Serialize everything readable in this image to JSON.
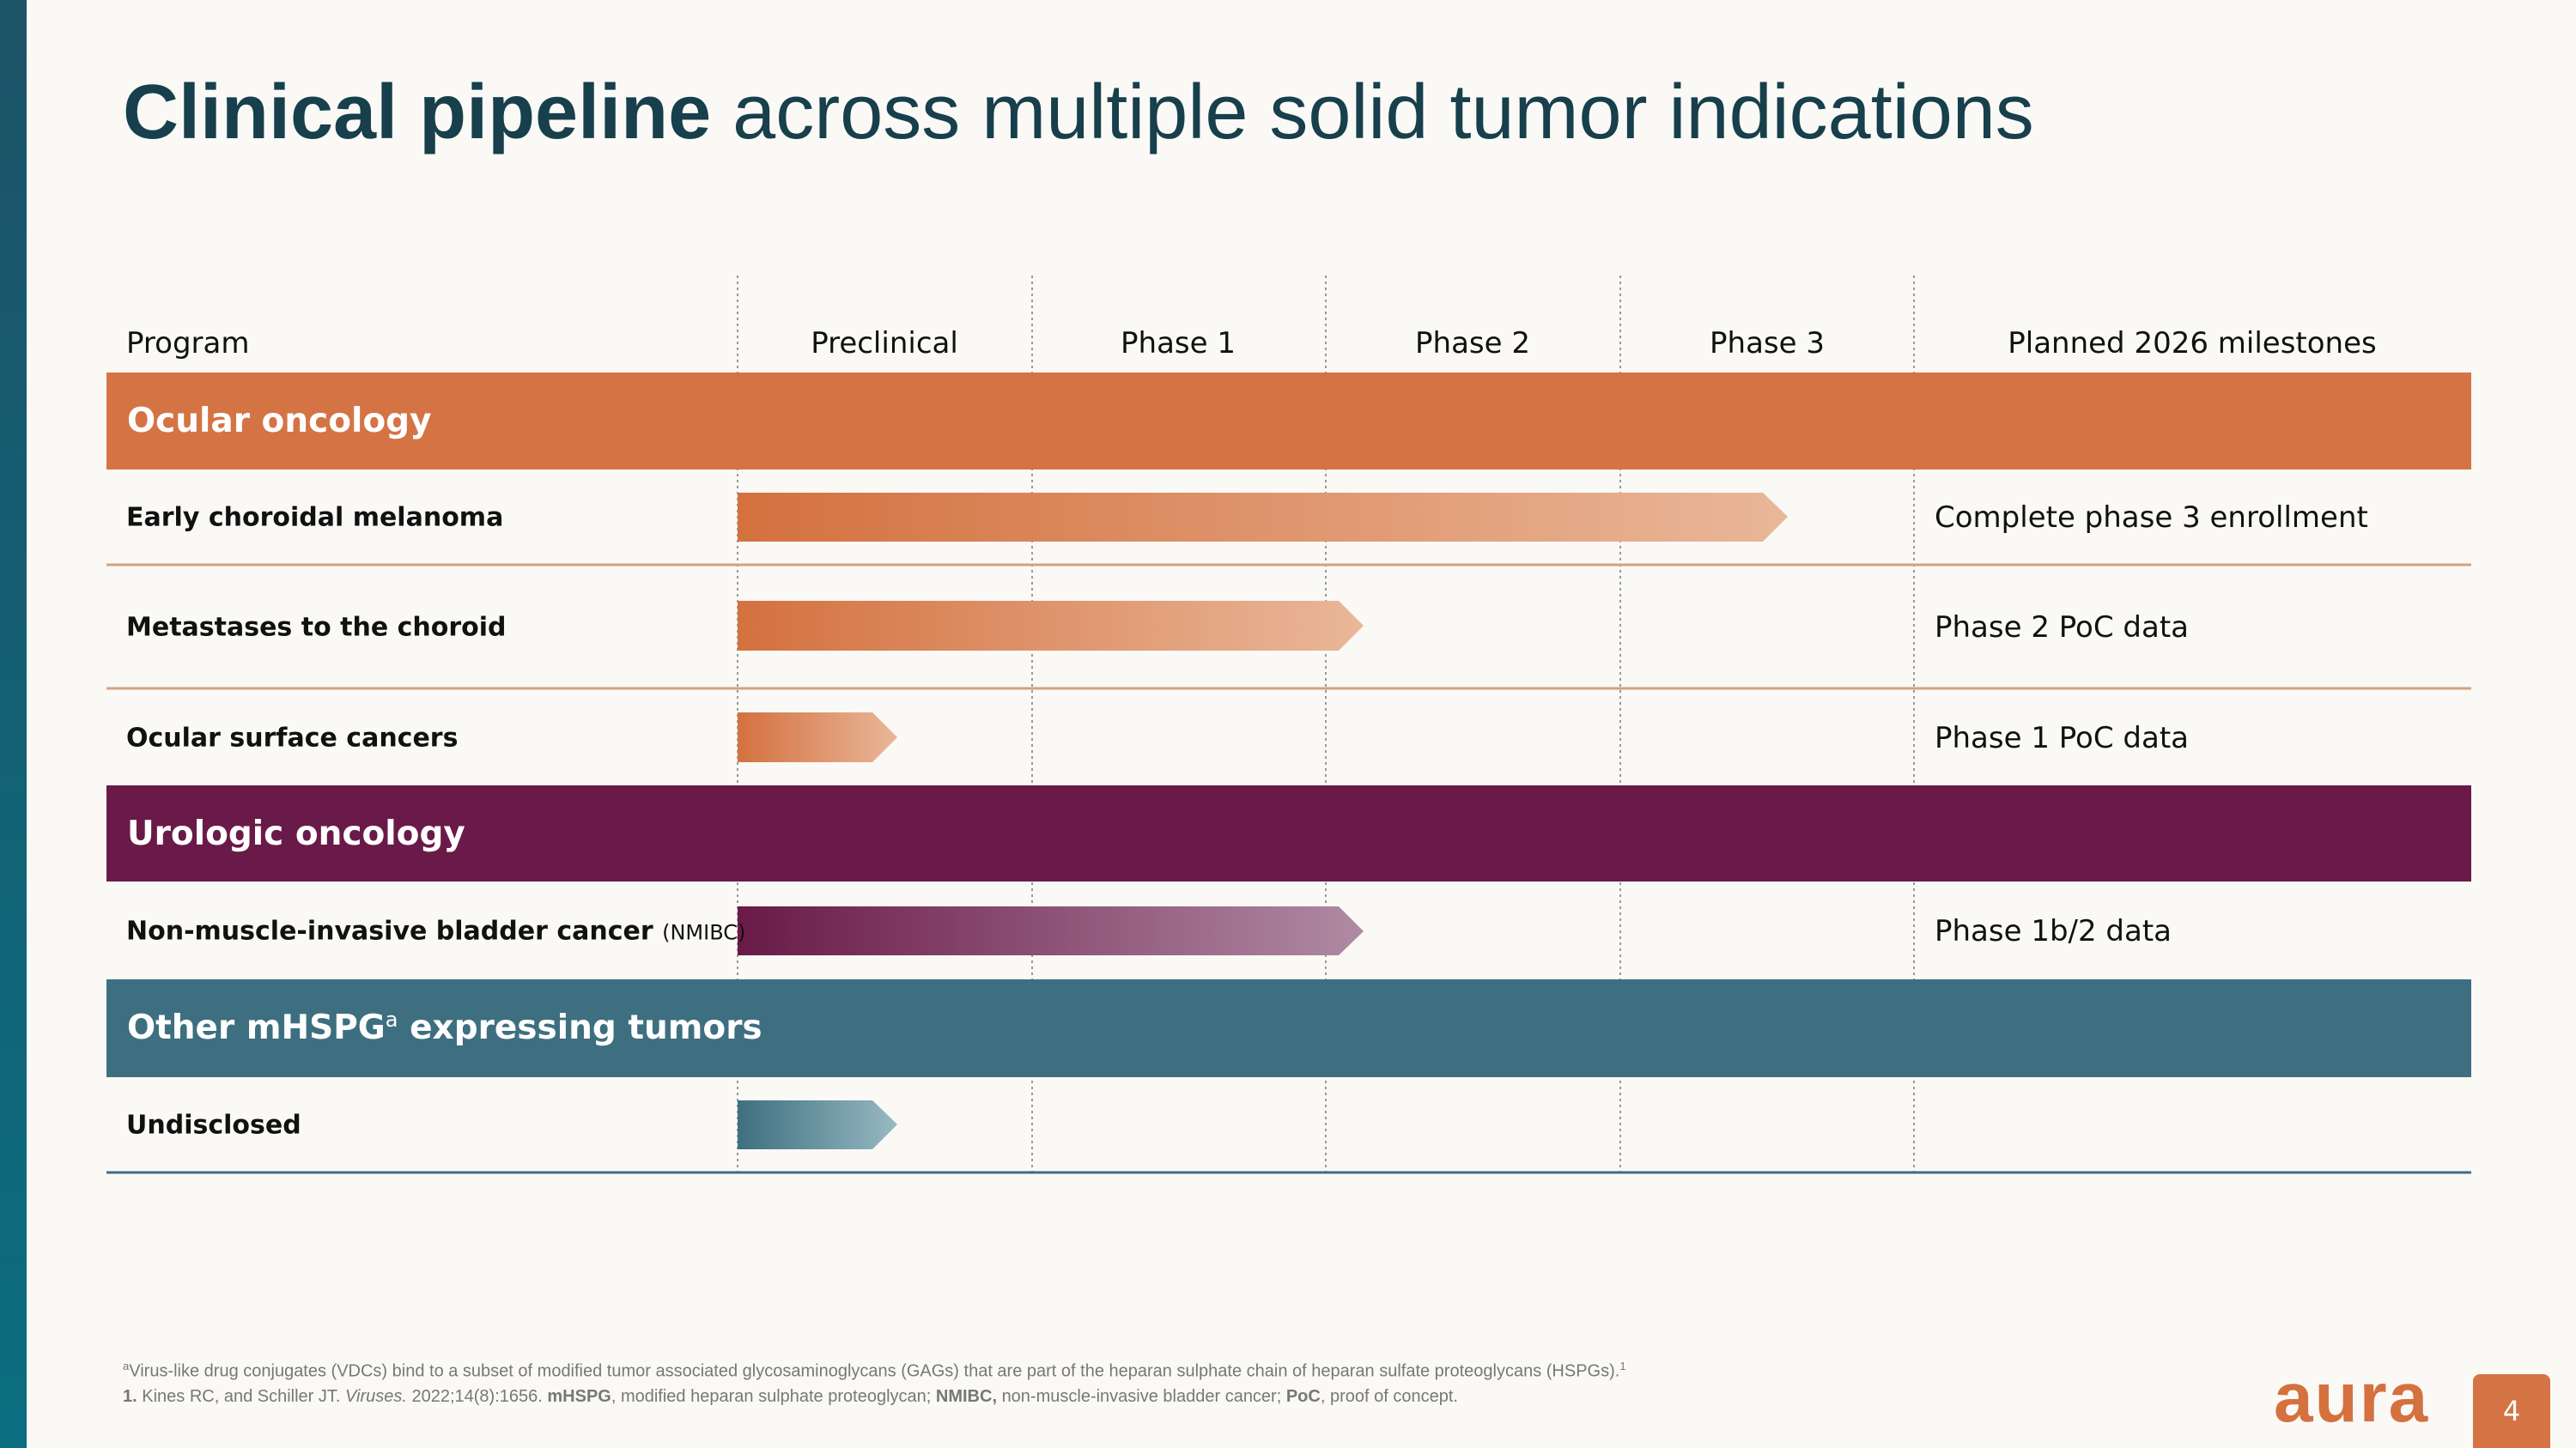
{
  "header": {
    "title_bold": "Clinical pipeline",
    "title_rest": "across multiple solid tumor indications"
  },
  "table": {
    "columns": [
      "Program",
      "Preclinical",
      "Phase 1",
      "Phase 2",
      "Phase 3",
      "Planned 2026 milestones"
    ],
    "sections": [
      {
        "title": "Ocular oncology",
        "rows": [
          {
            "program": "Early choroidal melanoma",
            "milestone": "Complete phase 3 enrollment"
          },
          {
            "program": "Metastases to the choroid",
            "milestone": "Phase 2 PoC data"
          },
          {
            "program": "Ocular surface cancers",
            "milestone": "Phase 1 PoC data"
          }
        ]
      },
      {
        "title": "Urologic oncology",
        "rows": [
          {
            "program": "Non-muscle-invasive bladder cancer",
            "program_note": "(NMIBC)",
            "milestone": "Phase 1b/2 data"
          }
        ]
      },
      {
        "title": "Other mHSPG",
        "title_sup": "a",
        "title_rest": "expressing tumors",
        "rows": [
          {
            "program": "Undisclosed"
          }
        ]
      }
    ]
  },
  "footnotes": {
    "line1": {
      "sup": "a",
      "text": "Virus-like drug conjugates (VDCs) bind to a subset of modified tumor associated glycosaminoglycans (GAGs) that are part of the heparan sulphate chain of heparan sulfate proteoglycans (HSPGs).",
      "ref": "1"
    },
    "line2": [
      "1.",
      "Kines RC, and Schiller JT.",
      "Viruses.",
      "2022;14(8):1656.",
      "mHSPG",
      ", modified heparan sulphate proteoglycan;",
      "NMIBC,",
      "non-muscle-invasive bladder cancer;",
      "PoC",
      ", proof of concept."
    ]
  },
  "footer": {
    "logo": "aura",
    "page": "4"
  }
}
